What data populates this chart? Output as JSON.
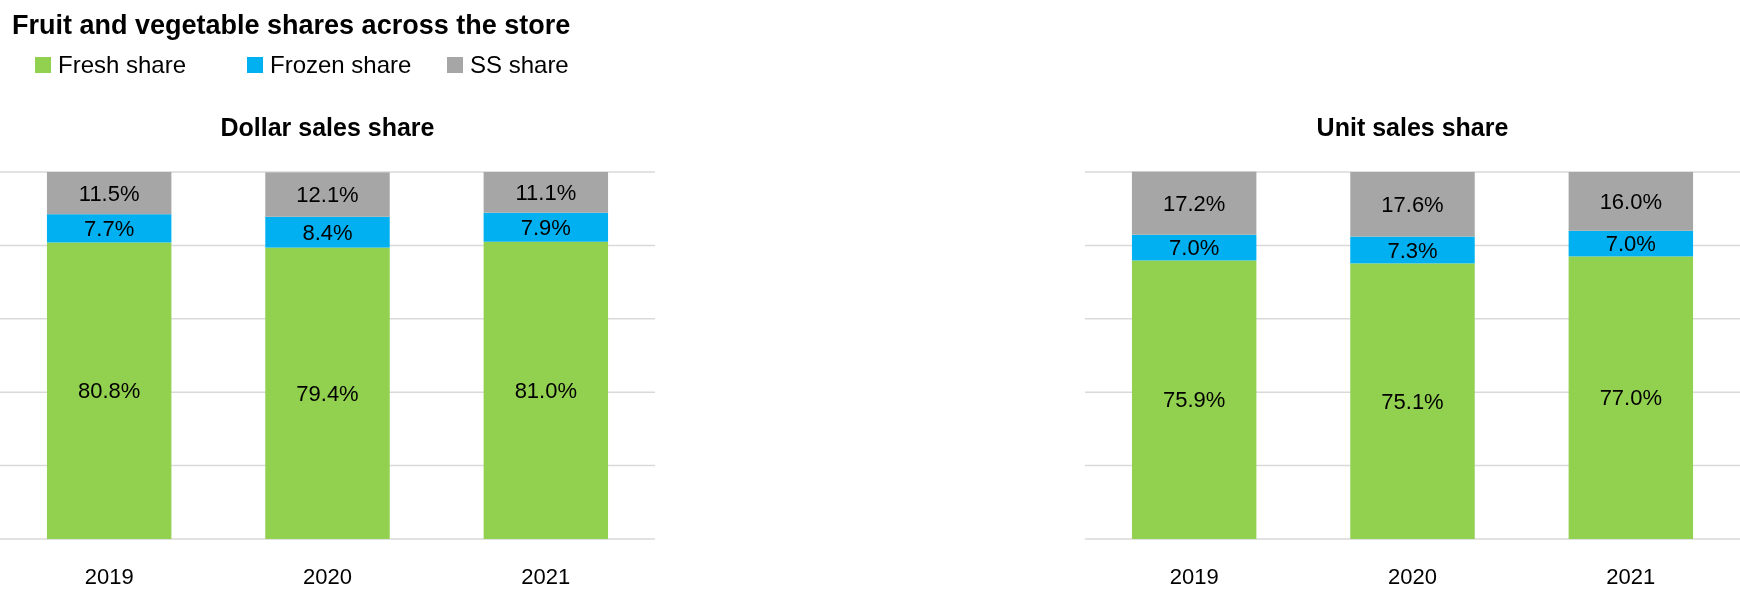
{
  "chart_data": [
    {
      "type": "bar",
      "title": "Fruit and vegetable shares across the store",
      "subtitle": "Dollar sales share",
      "categories": [
        "2019",
        "2020",
        "2021"
      ],
      "stacked": true,
      "legend": "top left",
      "grid": "y",
      "tick_labels": "x",
      "ylim": [
        0,
        100
      ],
      "yticks": [
        {
          "value": 0,
          "label": null
        },
        {
          "value": 20,
          "label": null
        },
        {
          "value": 40,
          "label": null
        },
        {
          "value": 60,
          "label": null
        },
        {
          "value": 80,
          "label": null
        },
        {
          "value": 100,
          "label": null
        }
      ],
      "series": [
        {
          "name": "Fresh share",
          "color": "#92d050",
          "values": [
            80.8,
            79.4,
            81.0
          ],
          "value_labels": [
            "80.8%",
            "79.4%",
            "81.0%"
          ]
        },
        {
          "name": "Frozen share",
          "color": "#00b0f0",
          "values": [
            7.7,
            8.4,
            7.9
          ],
          "value_labels": [
            "7.7%",
            "8.4%",
            "7.9%"
          ]
        },
        {
          "name": "SS share",
          "color": "#a6a6a6",
          "values": [
            11.5,
            12.1,
            11.1
          ],
          "value_labels": [
            "11.5%",
            "12.1%",
            "11.1%"
          ]
        }
      ]
    },
    {
      "type": "bar",
      "subtitle": "Unit sales share",
      "categories": [
        "2019",
        "2020",
        "2021"
      ],
      "stacked": true,
      "grid": "y",
      "tick_labels": "x",
      "ylim": [
        0,
        100
      ],
      "yticks": [
        {
          "value": 0,
          "label": null
        },
        {
          "value": 20,
          "label": null
        },
        {
          "value": 40,
          "label": null
        },
        {
          "value": 60,
          "label": null
        },
        {
          "value": 80,
          "label": null
        },
        {
          "value": 100,
          "label": null
        }
      ],
      "series": [
        {
          "color": "#92d050",
          "values": [
            75.9,
            75.1,
            77.0
          ],
          "value_labels": [
            "75.9%",
            "75.1%",
            "77.0%"
          ]
        },
        {
          "color": "#00b0f0",
          "values": [
            7.0,
            7.3,
            7.0
          ],
          "value_labels": [
            "7.0%",
            "7.3%",
            "7.0%"
          ]
        },
        {
          "color": "#a6a6a6",
          "values": [
            17.2,
            17.6,
            16.0
          ],
          "value_labels": [
            "17.2%",
            "17.6%",
            "16.0%"
          ]
        }
      ]
    }
  ]
}
